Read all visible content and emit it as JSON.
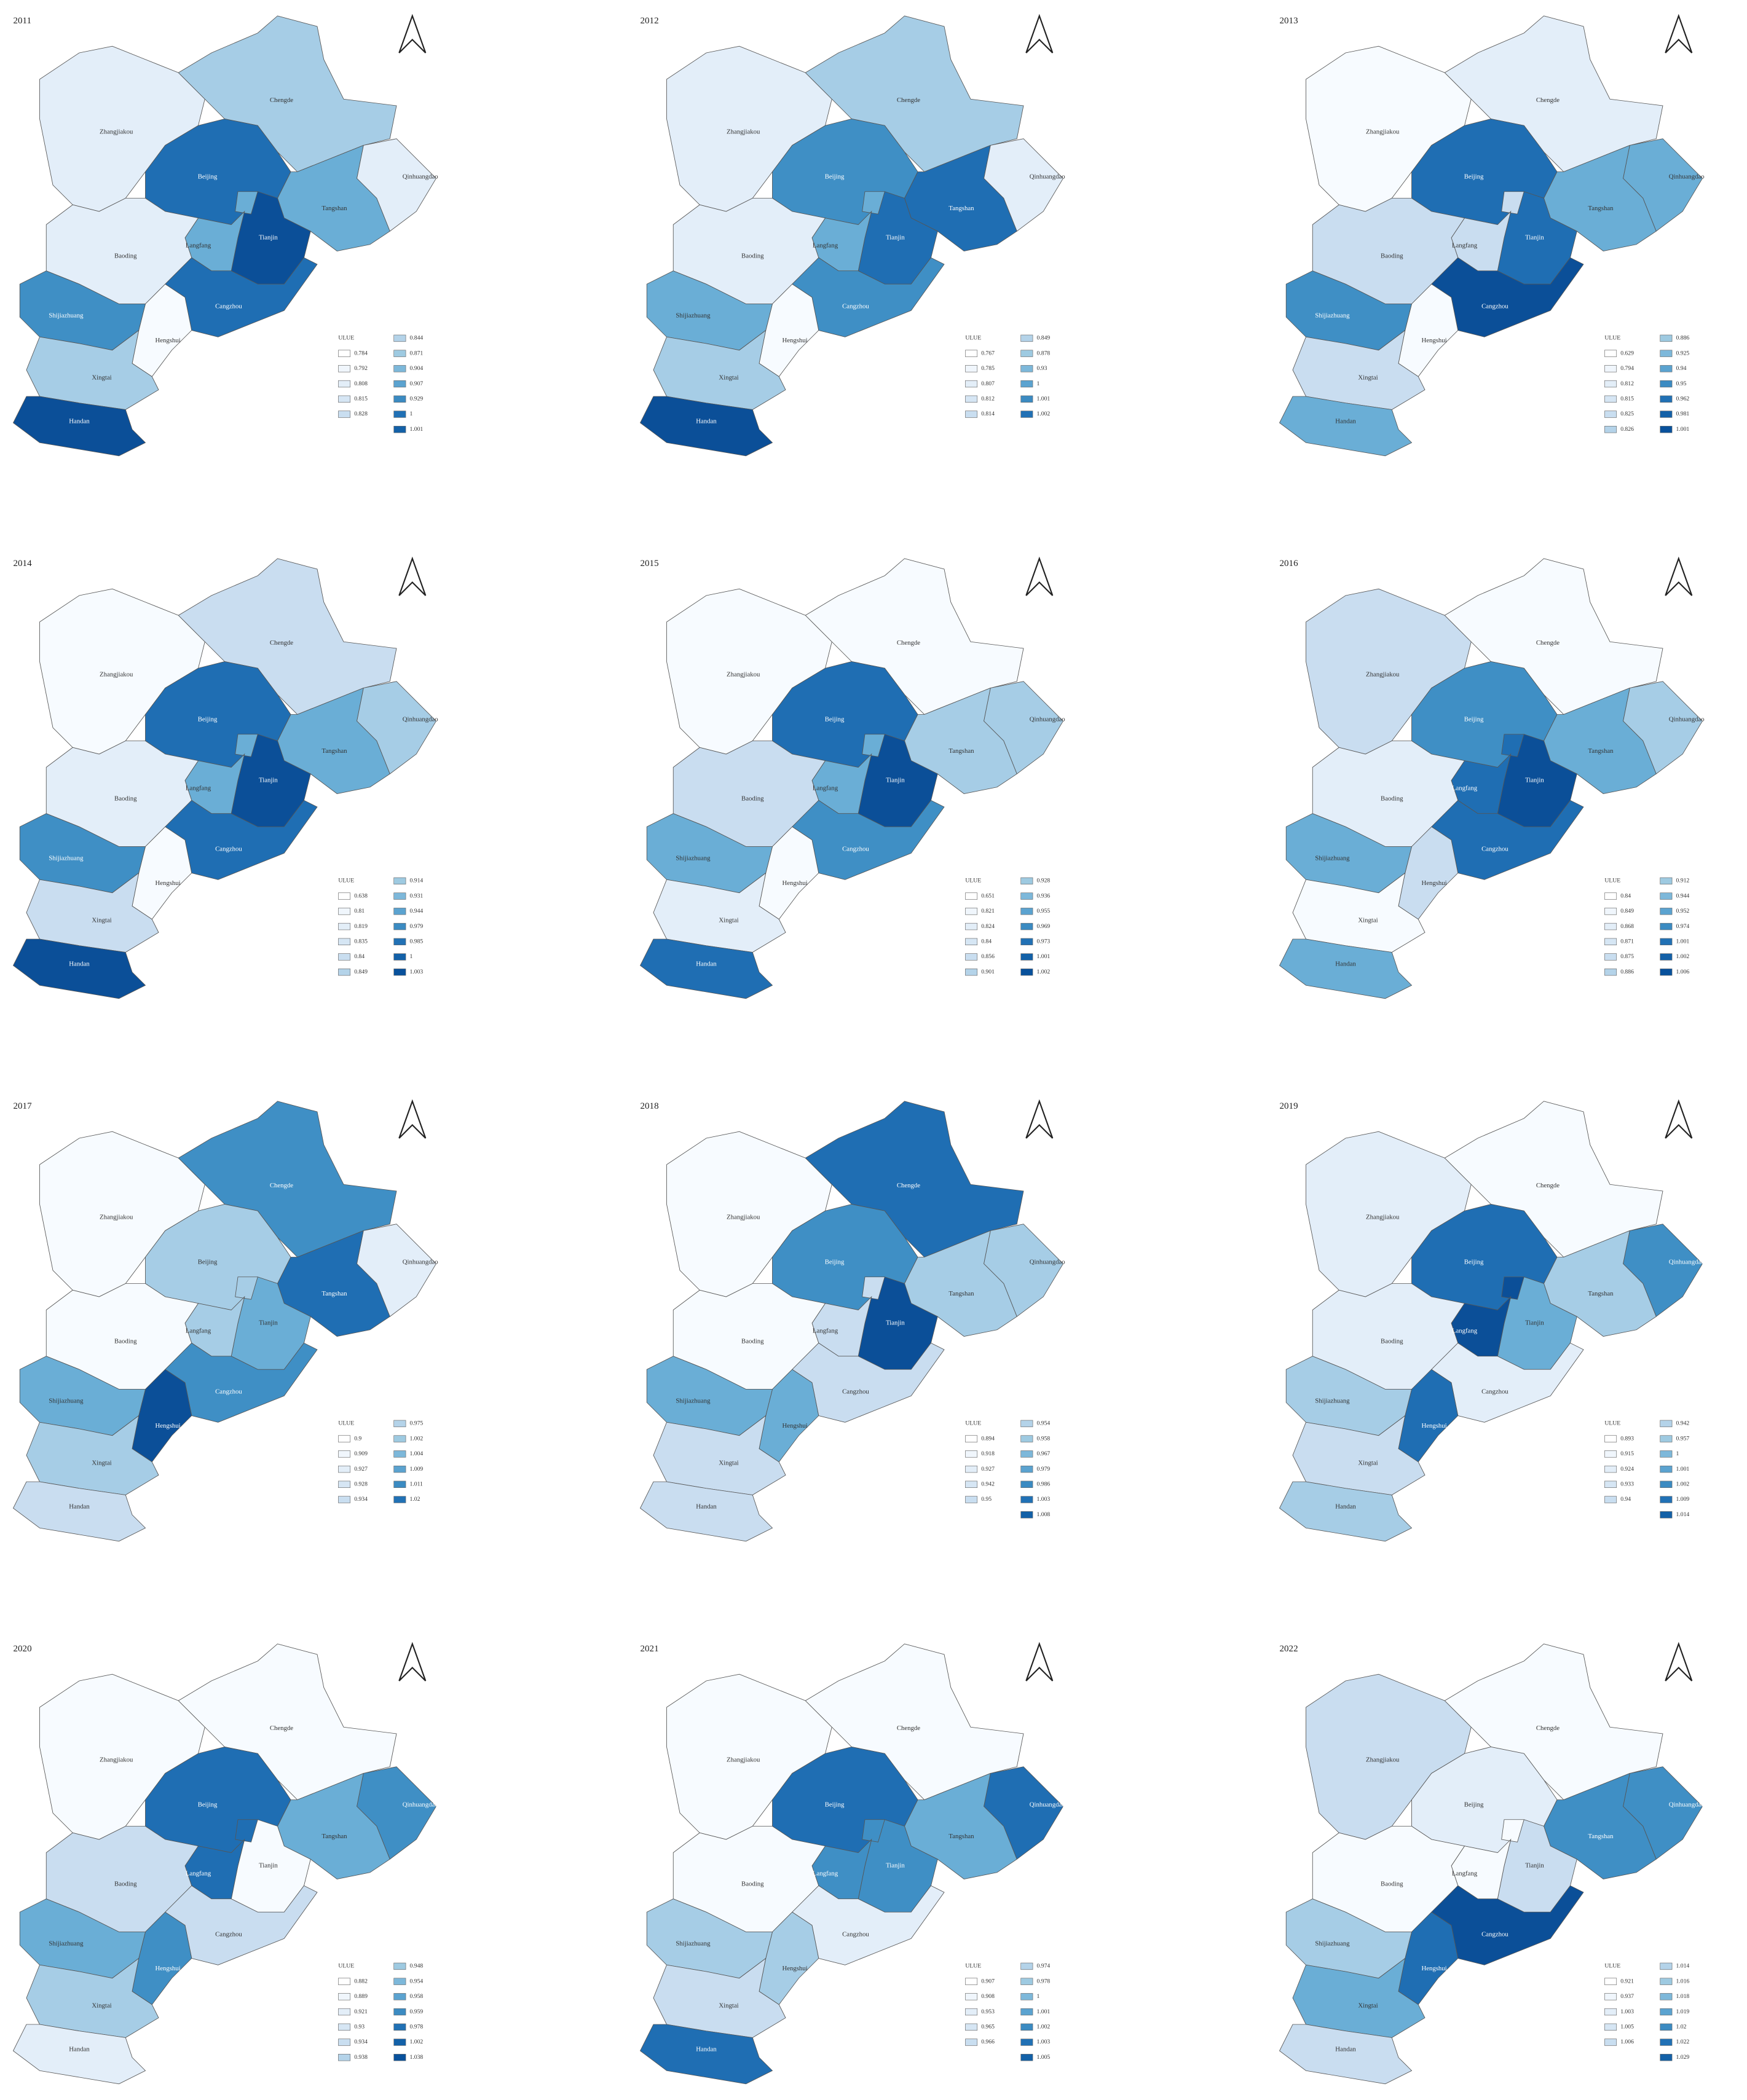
{
  "legend_colors": [
    "#ffffff",
    "#f0f6fc",
    "#e3eef8",
    "#d6e6f4",
    "#c9def0",
    "#b4d3e9",
    "#9ecae1",
    "#7db8da",
    "#5ba3d0",
    "#3b8bc2",
    "#2171b5",
    "#1361a8",
    "#08519c"
  ],
  "maps": [
    {
      "year": "2011",
      "regions": [
        {
          "name": "Zhangjiakou",
          "color": "#e3eef9"
        },
        {
          "name": "Chengde",
          "color": "#a6cde6"
        },
        {
          "name": "Beijing",
          "color": "#1f6eb3"
        },
        {
          "name": "Qinhuangdao",
          "color": "#e3eef9"
        },
        {
          "name": "Tangshan",
          "color": "#6aaed6"
        },
        {
          "name": "Tianjin",
          "color": "#0b4f98"
        },
        {
          "name": "Langfang",
          "color": "#6aaed6"
        },
        {
          "name": "Baoding",
          "color": "#e3eef9"
        },
        {
          "name": "Cangzhou",
          "color": "#1f6eb3"
        },
        {
          "name": "Hengshui",
          "color": "#f7fbff"
        },
        {
          "name": "Shijiazhuang",
          "color": "#3f8fc5"
        },
        {
          "name": "Xingtai",
          "color": "#a6cde6"
        },
        {
          "name": "Handan",
          "color": "#0b4f98"
        }
      ],
      "legend": {
        "title": "ULUE",
        "labels": [
          "0.784",
          "0.792",
          "0.808",
          "0.815",
          "0.828",
          "0.844",
          "0.871",
          "0.904",
          "0.907",
          "0.929",
          "1",
          "1.001"
        ]
      }
    },
    {
      "year": "2012",
      "regions": [
        {
          "name": "Zhangjiakou",
          "color": "#e3eef9"
        },
        {
          "name": "Chengde",
          "color": "#a6cde6"
        },
        {
          "name": "Beijing",
          "color": "#3f8fc5"
        },
        {
          "name": "Qinhuangdao",
          "color": "#e3eef9"
        },
        {
          "name": "Tangshan",
          "color": "#1f6eb3"
        },
        {
          "name": "Tianjin",
          "color": "#1f6eb3"
        },
        {
          "name": "Langfang",
          "color": "#6aaed6"
        },
        {
          "name": "Baoding",
          "color": "#e3eef9"
        },
        {
          "name": "Cangzhou",
          "color": "#3f8fc5"
        },
        {
          "name": "Hengshui",
          "color": "#f7fbff"
        },
        {
          "name": "Shijiazhuang",
          "color": "#6aaed6"
        },
        {
          "name": "Xingtai",
          "color": "#a6cde6"
        },
        {
          "name": "Handan",
          "color": "#0b4f98"
        }
      ],
      "legend": {
        "title": "ULUE",
        "labels": [
          "0.767",
          "0.785",
          "0.807",
          "0.812",
          "0.814",
          "0.849",
          "0.878",
          "0.93",
          "1",
          "1.001",
          "1.002"
        ]
      }
    },
    {
      "year": "2013",
      "regions": [
        {
          "name": "Zhangjiakou",
          "color": "#f7fbff"
        },
        {
          "name": "Chengde",
          "color": "#e3eef9"
        },
        {
          "name": "Beijing",
          "color": "#1f6eb3"
        },
        {
          "name": "Qinhuangdao",
          "color": "#6aaed6"
        },
        {
          "name": "Tangshan",
          "color": "#6aaed6"
        },
        {
          "name": "Tianjin",
          "color": "#1f6eb3"
        },
        {
          "name": "Langfang",
          "color": "#c9ddf0"
        },
        {
          "name": "Baoding",
          "color": "#c9ddf0"
        },
        {
          "name": "Cangzhou",
          "color": "#0b4f98"
        },
        {
          "name": "Hengshui",
          "color": "#f7fbff"
        },
        {
          "name": "Shijiazhuang",
          "color": "#3f8fc5"
        },
        {
          "name": "Xingtai",
          "color": "#c9ddf0"
        },
        {
          "name": "Handan",
          "color": "#6aaed6"
        }
      ],
      "legend": {
        "title": "ULUE",
        "labels": [
          "0.629",
          "0.794",
          "0.812",
          "0.815",
          "0.825",
          "0.826",
          "0.886",
          "0.925",
          "0.94",
          "0.95",
          "0.962",
          "0.981",
          "1.001"
        ]
      }
    },
    {
      "year": "2014",
      "regions": [
        {
          "name": "Zhangjiakou",
          "color": "#f7fbff"
        },
        {
          "name": "Chengde",
          "color": "#c9ddf0"
        },
        {
          "name": "Beijing",
          "color": "#1f6eb3"
        },
        {
          "name": "Qinhuangdao",
          "color": "#a6cde6"
        },
        {
          "name": "Tangshan",
          "color": "#6aaed6"
        },
        {
          "name": "Tianjin",
          "color": "#0b4f98"
        },
        {
          "name": "Langfang",
          "color": "#6aaed6"
        },
        {
          "name": "Baoding",
          "color": "#e3eef9"
        },
        {
          "name": "Cangzhou",
          "color": "#1f6eb3"
        },
        {
          "name": "Hengshui",
          "color": "#f7fbff"
        },
        {
          "name": "Shijiazhuang",
          "color": "#3f8fc5"
        },
        {
          "name": "Xingtai",
          "color": "#c9ddf0"
        },
        {
          "name": "Handan",
          "color": "#0b4f98"
        }
      ],
      "legend": {
        "title": "ULUE",
        "labels": [
          "0.638",
          "0.81",
          "0.819",
          "0.835",
          "0.84",
          "0.849",
          "0.914",
          "0.931",
          "0.944",
          "0.979",
          "0.985",
          "1",
          "1.003"
        ]
      }
    },
    {
      "year": "2015",
      "regions": [
        {
          "name": "Zhangjiakou",
          "color": "#f7fbff"
        },
        {
          "name": "Chengde",
          "color": "#f7fbff"
        },
        {
          "name": "Beijing",
          "color": "#1f6eb3"
        },
        {
          "name": "Qinhuangdao",
          "color": "#a6cde6"
        },
        {
          "name": "Tangshan",
          "color": "#a6cde6"
        },
        {
          "name": "Tianjin",
          "color": "#0b4f98"
        },
        {
          "name": "Langfang",
          "color": "#6aaed6"
        },
        {
          "name": "Baoding",
          "color": "#c9ddf0"
        },
        {
          "name": "Cangzhou",
          "color": "#3f8fc5"
        },
        {
          "name": "Hengshui",
          "color": "#f7fbff"
        },
        {
          "name": "Shijiazhuang",
          "color": "#6aaed6"
        },
        {
          "name": "Xingtai",
          "color": "#e3eef9"
        },
        {
          "name": "Handan",
          "color": "#1f6eb3"
        }
      ],
      "legend": {
        "title": "ULUE",
        "labels": [
          "0.651",
          "0.821",
          "0.824",
          "0.84",
          "0.856",
          "0.901",
          "0.928",
          "0.936",
          "0.955",
          "0.969",
          "0.973",
          "1.001",
          "1.002"
        ]
      }
    },
    {
      "year": "2016",
      "regions": [
        {
          "name": "Zhangjiakou",
          "color": "#c9ddf0"
        },
        {
          "name": "Chengde",
          "color": "#f7fbff"
        },
        {
          "name": "Beijing",
          "color": "#3f8fc5"
        },
        {
          "name": "Qinhuangdao",
          "color": "#a6cde6"
        },
        {
          "name": "Tangshan",
          "color": "#6aaed6"
        },
        {
          "name": "Tianjin",
          "color": "#0b4f98"
        },
        {
          "name": "Langfang",
          "color": "#1f6eb3"
        },
        {
          "name": "Baoding",
          "color": "#e3eef9"
        },
        {
          "name": "Cangzhou",
          "color": "#1f6eb3"
        },
        {
          "name": "Hengshui",
          "color": "#c9ddf0"
        },
        {
          "name": "Shijiazhuang",
          "color": "#6aaed6"
        },
        {
          "name": "Xingtai",
          "color": "#f7fbff"
        },
        {
          "name": "Handan",
          "color": "#6aaed6"
        }
      ],
      "legend": {
        "title": "ULUE",
        "labels": [
          "0.84",
          "0.849",
          "0.868",
          "0.871",
          "0.875",
          "0.886",
          "0.912",
          "0.944",
          "0.952",
          "0.974",
          "1.001",
          "1.002",
          "1.006"
        ]
      }
    },
    {
      "year": "2017",
      "regions": [
        {
          "name": "Zhangjiakou",
          "color": "#f7fbff"
        },
        {
          "name": "Chengde",
          "color": "#3f8fc5"
        },
        {
          "name": "Beijing",
          "color": "#a6cde6"
        },
        {
          "name": "Qinhuangdao",
          "color": "#e3eef9"
        },
        {
          "name": "Tangshan",
          "color": "#1f6eb3"
        },
        {
          "name": "Tianjin",
          "color": "#6aaed6"
        },
        {
          "name": "Langfang",
          "color": "#a6cde6"
        },
        {
          "name": "Baoding",
          "color": "#f7fbff"
        },
        {
          "name": "Cangzhou",
          "color": "#3f8fc5"
        },
        {
          "name": "Hengshui",
          "color": "#0b4f98"
        },
        {
          "name": "Shijiazhuang",
          "color": "#6aaed6"
        },
        {
          "name": "Xingtai",
          "color": "#a6cde6"
        },
        {
          "name": "Handan",
          "color": "#c9ddf0"
        }
      ],
      "legend": {
        "title": "ULUE",
        "labels": [
          "0.9",
          "0.909",
          "0.927",
          "0.928",
          "0.934",
          "0.975",
          "1.002",
          "1.004",
          "1.009",
          "1.011",
          "1.02"
        ]
      }
    },
    {
      "year": "2018",
      "regions": [
        {
          "name": "Zhangjiakou",
          "color": "#f7fbff"
        },
        {
          "name": "Chengde",
          "color": "#1f6eb3"
        },
        {
          "name": "Beijing",
          "color": "#3f8fc5"
        },
        {
          "name": "Qinhuangdao",
          "color": "#a6cde6"
        },
        {
          "name": "Tangshan",
          "color": "#a6cde6"
        },
        {
          "name": "Tianjin",
          "color": "#0b4f98"
        },
        {
          "name": "Langfang",
          "color": "#c9ddf0"
        },
        {
          "name": "Baoding",
          "color": "#f7fbff"
        },
        {
          "name": "Cangzhou",
          "color": "#c9ddf0"
        },
        {
          "name": "Hengshui",
          "color": "#6aaed6"
        },
        {
          "name": "Shijiazhuang",
          "color": "#6aaed6"
        },
        {
          "name": "Xingtai",
          "color": "#c9ddf0"
        },
        {
          "name": "Handan",
          "color": "#c9ddf0"
        }
      ],
      "legend": {
        "title": "ULUE",
        "labels": [
          "0.894",
          "0.918",
          "0.927",
          "0.942",
          "0.95",
          "0.954",
          "0.958",
          "0.967",
          "0.979",
          "0.986",
          "1.003",
          "1.008"
        ]
      }
    },
    {
      "year": "2019",
      "regions": [
        {
          "name": "Zhangjiakou",
          "color": "#e3eef9"
        },
        {
          "name": "Chengde",
          "color": "#f7fbff"
        },
        {
          "name": "Beijing",
          "color": "#1f6eb3"
        },
        {
          "name": "Qinhuangdao",
          "color": "#3f8fc5"
        },
        {
          "name": "Tangshan",
          "color": "#a6cde6"
        },
        {
          "name": "Tianjin",
          "color": "#6aaed6"
        },
        {
          "name": "Langfang",
          "color": "#0b4f98"
        },
        {
          "name": "Baoding",
          "color": "#e3eef9"
        },
        {
          "name": "Cangzhou",
          "color": "#e3eef9"
        },
        {
          "name": "Hengshui",
          "color": "#1f6eb3"
        },
        {
          "name": "Shijiazhuang",
          "color": "#a6cde6"
        },
        {
          "name": "Xingtai",
          "color": "#c9ddf0"
        },
        {
          "name": "Handan",
          "color": "#a6cde6"
        }
      ],
      "legend": {
        "title": "ULUE",
        "labels": [
          "0.893",
          "0.915",
          "0.924",
          "0.933",
          "0.94",
          "0.942",
          "0.957",
          "1",
          "1.001",
          "1.002",
          "1.009",
          "1.014"
        ]
      }
    },
    {
      "year": "2020",
      "regions": [
        {
          "name": "Zhangjiakou",
          "color": "#f7fbff"
        },
        {
          "name": "Chengde",
          "color": "#f7fbff"
        },
        {
          "name": "Beijing",
          "color": "#1f6eb3"
        },
        {
          "name": "Qinhuangdao",
          "color": "#3f8fc5"
        },
        {
          "name": "Tangshan",
          "color": "#6aaed6"
        },
        {
          "name": "Tianjin",
          "color": "#f7fbff"
        },
        {
          "name": "Langfang",
          "color": "#1f6eb3"
        },
        {
          "name": "Baoding",
          "color": "#c9ddf0"
        },
        {
          "name": "Cangzhou",
          "color": "#c9ddf0"
        },
        {
          "name": "Hengshui",
          "color": "#3f8fc5"
        },
        {
          "name": "Shijiazhuang",
          "color": "#6aaed6"
        },
        {
          "name": "Xingtai",
          "color": "#a6cde6"
        },
        {
          "name": "Handan",
          "color": "#e3eef9"
        }
      ],
      "legend": {
        "title": "ULUE",
        "labels": [
          "0.882",
          "0.889",
          "0.921",
          "0.93",
          "0.934",
          "0.938",
          "0.948",
          "0.954",
          "0.958",
          "0.959",
          "0.978",
          "1.002",
          "1.038"
        ]
      }
    },
    {
      "year": "2021",
      "regions": [
        {
          "name": "Zhangjiakou",
          "color": "#f7fbff"
        },
        {
          "name": "Chengde",
          "color": "#f7fbff"
        },
        {
          "name": "Beijing",
          "color": "#1f6eb3"
        },
        {
          "name": "Qinhuangdao",
          "color": "#1f6eb3"
        },
        {
          "name": "Tangshan",
          "color": "#6aaed6"
        },
        {
          "name": "Tianjin",
          "color": "#3f8fc5"
        },
        {
          "name": "Langfang",
          "color": "#3f8fc5"
        },
        {
          "name": "Baoding",
          "color": "#f7fbff"
        },
        {
          "name": "Cangzhou",
          "color": "#e3eef9"
        },
        {
          "name": "Hengshui",
          "color": "#a6cde6"
        },
        {
          "name": "Shijiazhuang",
          "color": "#a6cde6"
        },
        {
          "name": "Xingtai",
          "color": "#c9ddf0"
        },
        {
          "name": "Handan",
          "color": "#1f6eb3"
        }
      ],
      "legend": {
        "title": "ULUE",
        "labels": [
          "0.907",
          "0.908",
          "0.953",
          "0.965",
          "0.966",
          "0.974",
          "0.978",
          "1",
          "1.001",
          "1.002",
          "1.003",
          "1.005"
        ]
      }
    },
    {
      "year": "2022",
      "regions": [
        {
          "name": "Zhangjiakou",
          "color": "#c9ddf0"
        },
        {
          "name": "Chengde",
          "color": "#f7fbff"
        },
        {
          "name": "Beijing",
          "color": "#e3eef9"
        },
        {
          "name": "Qinhuangdao",
          "color": "#3f8fc5"
        },
        {
          "name": "Tangshan",
          "color": "#3f8fc5"
        },
        {
          "name": "Tianjin",
          "color": "#c9ddf0"
        },
        {
          "name": "Langfang",
          "color": "#f7fbff"
        },
        {
          "name": "Baoding",
          "color": "#f7fbff"
        },
        {
          "name": "Cangzhou",
          "color": "#0b4f98"
        },
        {
          "name": "Hengshui",
          "color": "#1f6eb3"
        },
        {
          "name": "Shijiazhuang",
          "color": "#a6cde6"
        },
        {
          "name": "Xingtai",
          "color": "#6aaed6"
        },
        {
          "name": "Handan",
          "color": "#c9ddf0"
        }
      ],
      "legend": {
        "title": "ULUE",
        "labels": [
          "0.921",
          "0.937",
          "1.003",
          "1.005",
          "1.006",
          "1.014",
          "1.016",
          "1.018",
          "1.019",
          "1.02",
          "1.022",
          "1.029"
        ]
      }
    }
  ]
}
